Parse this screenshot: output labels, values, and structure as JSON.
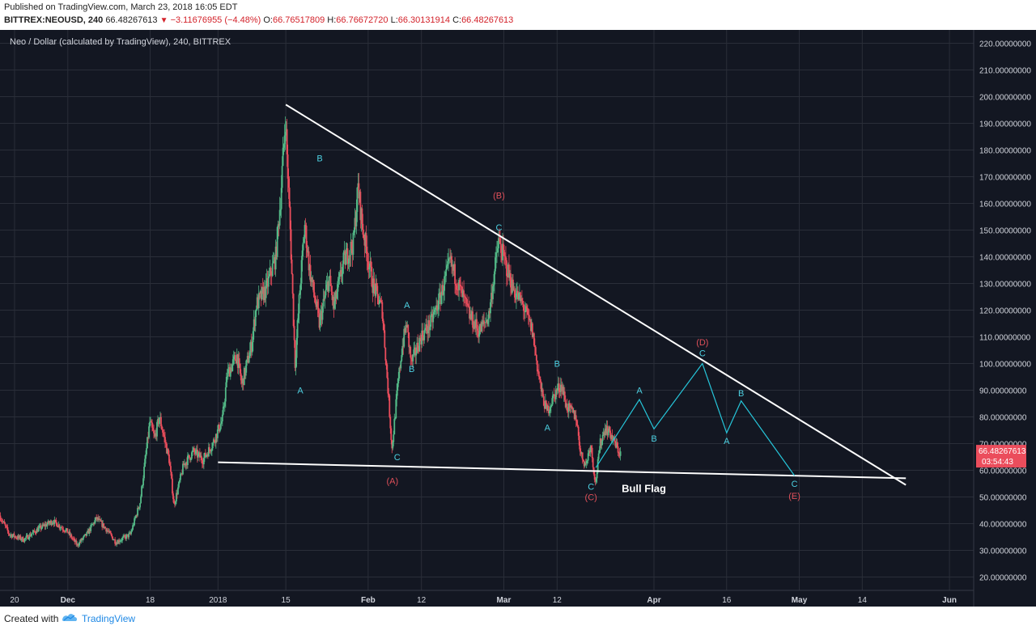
{
  "header": {
    "published": "Published on TradingView.com, March 23, 2018 16:05 EDT",
    "symbol": "BITTREX:NEOUSD, 240",
    "last": "66.48267613",
    "change_icon": "down-triangle-icon",
    "change": "−3.11676955 (−4.48%)",
    "o_label": "O:",
    "open": "66.76517809",
    "h_label": "H:",
    "high": "66.76672720",
    "l_label": "L:",
    "low": "66.30131914",
    "c_label": "C:",
    "close": "66.48267613"
  },
  "footer": {
    "created_label": "Created with",
    "brand": "TradingView",
    "logo_icon": "tradingview-logo-icon"
  },
  "colors": {
    "background": "#131722",
    "grid": "#2a2e39",
    "up": "#53b987",
    "down": "#eb4d5c",
    "trendline": "#ffffff",
    "projection": "#26c6da",
    "wave_red": "#e0505a",
    "wave_cyan": "#4dd0e1",
    "price_tag": "#eb4d5c"
  },
  "chart_data": {
    "type": "candlestick",
    "title": "Neo / Dollar (calculated by TradingView), 240, BITTREX",
    "ylim": [
      15,
      225
    ],
    "y_ticks": [
      20,
      30,
      40,
      50,
      60,
      70,
      80,
      90,
      100,
      110,
      120,
      130,
      140,
      150,
      160,
      170,
      180,
      190,
      200,
      210,
      220
    ],
    "y_tick_labels": [
      "20.00000000",
      "30.00000000",
      "40.00000000",
      "50.00000000",
      "60.00000000",
      "70.00000000",
      "80.00000000",
      "90.00000000",
      "100.00000000",
      "110.00000000",
      "120.00000000",
      "130.00000000",
      "140.00000000",
      "150.00000000",
      "160.00000000",
      "170.00000000",
      "180.00000000",
      "190.00000000",
      "200.00000000",
      "210.00000000",
      "220.00000000"
    ],
    "xlim": [
      "2017-11-17",
      "2018-06-06"
    ],
    "x_ticks": [
      {
        "date": "2017-11-20",
        "label": "20"
      },
      {
        "date": "2017-12-01",
        "label": "Dec"
      },
      {
        "date": "2017-12-18",
        "label": "18"
      },
      {
        "date": "2018-01-01",
        "label": "2018"
      },
      {
        "date": "2018-01-15",
        "label": "15"
      },
      {
        "date": "2018-02-01",
        "label": "Feb"
      },
      {
        "date": "2018-02-12",
        "label": "12"
      },
      {
        "date": "2018-03-01",
        "label": "Mar"
      },
      {
        "date": "2018-03-12",
        "label": "12"
      },
      {
        "date": "2018-04-01",
        "label": "Apr"
      },
      {
        "date": "2018-04-16",
        "label": "16"
      },
      {
        "date": "2018-05-01",
        "label": "May"
      },
      {
        "date": "2018-05-14",
        "label": "14"
      },
      {
        "date": "2018-06-01",
        "label": "Jun"
      }
    ],
    "price_path": [
      [
        "2017-11-17",
        43
      ],
      [
        "2017-11-19",
        36
      ],
      [
        "2017-11-22",
        34
      ],
      [
        "2017-11-25",
        38
      ],
      [
        "2017-11-28",
        41
      ],
      [
        "2017-12-01",
        37
      ],
      [
        "2017-12-03",
        32
      ],
      [
        "2017-12-05",
        36
      ],
      [
        "2017-12-07",
        42
      ],
      [
        "2017-12-09",
        38
      ],
      [
        "2017-12-11",
        33
      ],
      [
        "2017-12-14",
        36
      ],
      [
        "2017-12-16",
        48
      ],
      [
        "2017-12-18",
        78
      ],
      [
        "2017-12-19",
        72
      ],
      [
        "2017-12-20",
        80
      ],
      [
        "2017-12-22",
        64
      ],
      [
        "2017-12-23",
        47
      ],
      [
        "2017-12-25",
        62
      ],
      [
        "2017-12-27",
        67
      ],
      [
        "2017-12-29",
        64
      ],
      [
        "2017-12-31",
        70
      ],
      [
        "2018-01-02",
        79
      ],
      [
        "2018-01-03",
        96
      ],
      [
        "2018-01-05",
        103
      ],
      [
        "2018-01-06",
        92
      ],
      [
        "2018-01-08",
        107
      ],
      [
        "2018-01-09",
        122
      ],
      [
        "2018-01-11",
        128
      ],
      [
        "2018-01-13",
        140
      ],
      [
        "2018-01-14",
        162
      ],
      [
        "2018-01-15",
        192
      ],
      [
        "2018-01-16",
        150
      ],
      [
        "2018-01-17",
        100
      ],
      [
        "2018-01-18",
        128
      ],
      [
        "2018-01-19",
        152
      ],
      [
        "2018-01-20",
        135
      ],
      [
        "2018-01-22",
        115
      ],
      [
        "2018-01-24",
        132
      ],
      [
        "2018-01-25",
        121
      ],
      [
        "2018-01-27",
        138
      ],
      [
        "2018-01-29",
        145
      ],
      [
        "2018-01-30",
        166
      ],
      [
        "2018-01-31",
        150
      ],
      [
        "2018-02-02",
        130
      ],
      [
        "2018-02-04",
        120
      ],
      [
        "2018-02-05",
        95
      ],
      [
        "2018-02-06",
        68
      ],
      [
        "2018-02-07",
        88
      ],
      [
        "2018-02-08",
        105
      ],
      [
        "2018-02-09",
        115
      ],
      [
        "2018-02-10",
        100
      ],
      [
        "2018-02-12",
        110
      ],
      [
        "2018-02-14",
        115
      ],
      [
        "2018-02-16",
        125
      ],
      [
        "2018-02-18",
        138
      ],
      [
        "2018-02-20",
        128
      ],
      [
        "2018-02-22",
        118
      ],
      [
        "2018-02-24",
        112
      ],
      [
        "2018-02-26",
        118
      ],
      [
        "2018-02-28",
        146
      ],
      [
        "2018-03-01",
        140
      ],
      [
        "2018-03-03",
        128
      ],
      [
        "2018-03-05",
        122
      ],
      [
        "2018-03-07",
        112
      ],
      [
        "2018-03-08",
        99
      ],
      [
        "2018-03-09",
        88
      ],
      [
        "2018-03-10",
        82
      ],
      [
        "2018-03-12",
        90
      ],
      [
        "2018-03-13",
        92
      ],
      [
        "2018-03-14",
        84
      ],
      [
        "2018-03-16",
        80
      ],
      [
        "2018-03-17",
        66
      ],
      [
        "2018-03-18",
        62
      ],
      [
        "2018-03-19",
        70
      ],
      [
        "2018-03-20",
        55
      ],
      [
        "2018-03-21",
        70
      ],
      [
        "2018-03-22",
        76
      ],
      [
        "2018-03-23",
        74
      ],
      [
        "2018-03-24",
        70
      ],
      [
        "2018-03-25",
        66.48
      ]
    ],
    "last_price": "66.48267613",
    "countdown": "03:54:43",
    "trendlines": [
      {
        "name": "upper-resistance",
        "points": [
          [
            "2018-01-15",
            197
          ],
          [
            "2018-05-23",
            54.5
          ]
        ]
      },
      {
        "name": "lower-support",
        "points": [
          [
            "2018-01-01",
            63
          ],
          [
            "2018-05-23",
            57
          ]
        ]
      }
    ],
    "projection_path": [
      [
        "2018-03-20",
        61
      ],
      [
        "2018-03-29",
        86.5
      ],
      [
        "2018-04-01",
        75.5
      ],
      [
        "2018-04-11",
        100
      ],
      [
        "2018-04-16",
        74
      ],
      [
        "2018-04-19",
        86
      ],
      [
        "2018-04-30",
        58
      ]
    ],
    "annotations": [
      {
        "text": "B",
        "date": "2018-01-22",
        "value": 177,
        "color": "cyan"
      },
      {
        "text": "(B)",
        "date": "2018-02-28",
        "value": 163,
        "color": "red"
      },
      {
        "text": "C",
        "date": "2018-02-28",
        "value": 151,
        "color": "cyan"
      },
      {
        "text": "A",
        "date": "2018-01-18",
        "value": 90,
        "color": "cyan"
      },
      {
        "text": "A",
        "date": "2018-02-09",
        "value": 122,
        "color": "cyan"
      },
      {
        "text": "B",
        "date": "2018-02-10",
        "value": 98,
        "color": "cyan"
      },
      {
        "text": "C",
        "date": "2018-02-07",
        "value": 65,
        "color": "cyan"
      },
      {
        "text": "(A)",
        "date": "2018-02-06",
        "value": 56,
        "color": "red"
      },
      {
        "text": "B",
        "date": "2018-03-12",
        "value": 100,
        "color": "cyan"
      },
      {
        "text": "A",
        "date": "2018-03-10",
        "value": 76,
        "color": "cyan"
      },
      {
        "text": "C",
        "date": "2018-03-19",
        "value": 54,
        "color": "cyan"
      },
      {
        "text": "(C)",
        "date": "2018-03-19",
        "value": 50,
        "color": "red"
      },
      {
        "text": "A",
        "date": "2018-03-29",
        "value": 90,
        "color": "cyan"
      },
      {
        "text": "B",
        "date": "2018-04-01",
        "value": 72,
        "color": "cyan"
      },
      {
        "text": "(D)",
        "date": "2018-04-11",
        "value": 108,
        "color": "red"
      },
      {
        "text": "C",
        "date": "2018-04-11",
        "value": 104,
        "color": "cyan"
      },
      {
        "text": "A",
        "date": "2018-04-16",
        "value": 71,
        "color": "cyan"
      },
      {
        "text": "B",
        "date": "2018-04-19",
        "value": 89,
        "color": "cyan"
      },
      {
        "text": "C",
        "date": "2018-04-30",
        "value": 55,
        "color": "cyan"
      },
      {
        "text": "(E)",
        "date": "2018-04-30",
        "value": 50.5,
        "color": "red"
      }
    ],
    "callout": {
      "text": "Bull Flag",
      "date": "2018-03-24",
      "value": 53
    }
  }
}
